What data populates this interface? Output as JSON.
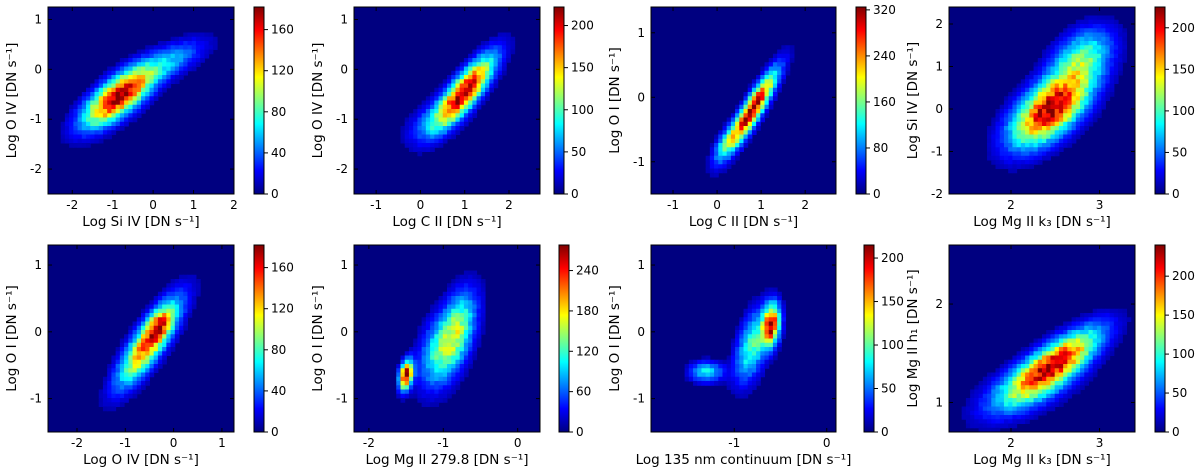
{
  "figure": {
    "colormap": "jet",
    "colors": {
      "low": "#00007f",
      "background": "#00007f",
      "high": "#7f0000"
    }
  },
  "chart_data": [
    {
      "type": "heatmap",
      "panel": "top-1",
      "xlabel": "Log Si IV [DN s⁻¹]",
      "ylabel": "Log O IV [DN s⁻¹]",
      "xlim": [
        -2.6,
        2.0
      ],
      "ylim": [
        -2.5,
        1.25
      ],
      "xticks": [
        -2,
        -1,
        0,
        1,
        2
      ],
      "yticks": [
        -2,
        -1,
        0,
        1
      ],
      "colorbar": {
        "min": 0,
        "max": 182,
        "ticks": [
          0,
          40,
          80,
          120,
          160
        ]
      },
      "peak": {
        "x": -0.85,
        "y": -0.55,
        "count": 182
      },
      "distribution": [
        {
          "x": -0.85,
          "y": -0.55,
          "sx": 0.55,
          "sy": 0.38,
          "rho": 0.72,
          "w": 1.0
        },
        {
          "x": 0.4,
          "y": 0.15,
          "sx": 0.6,
          "sy": 0.3,
          "rho": 0.7,
          "w": 0.22
        }
      ]
    },
    {
      "type": "heatmap",
      "panel": "top-2",
      "xlabel": "Log C II [DN s⁻¹]",
      "ylabel": "Log O IV [DN s⁻¹]",
      "xlim": [
        -1.5,
        2.7
      ],
      "ylim": [
        -2.5,
        1.25
      ],
      "xticks": [
        -1,
        0,
        1,
        2
      ],
      "yticks": [
        -2,
        -1,
        0,
        1
      ],
      "colorbar": {
        "min": 0,
        "max": 222,
        "ticks": [
          0,
          50,
          100,
          150,
          200
        ]
      },
      "peak": {
        "x": 1.0,
        "y": -0.45,
        "count": 222
      },
      "distribution": [
        {
          "x": 1.0,
          "y": -0.45,
          "sx": 0.42,
          "sy": 0.45,
          "rho": 0.82,
          "w": 1.0
        },
        {
          "x": 0.3,
          "y": -1.0,
          "sx": 0.4,
          "sy": 0.3,
          "rho": 0.6,
          "w": 0.18
        }
      ]
    },
    {
      "type": "heatmap",
      "panel": "top-3",
      "xlabel": "Log C II [DN s⁻¹]",
      "ylabel": "Log O I [DN s⁻¹]",
      "xlim": [
        -1.5,
        2.7
      ],
      "ylim": [
        -1.5,
        1.4
      ],
      "xticks": [
        -1,
        0,
        1,
        2
      ],
      "yticks": [
        -1,
        0,
        1
      ],
      "colorbar": {
        "min": 0,
        "max": 325,
        "ticks": [
          0,
          80,
          160,
          240,
          320
        ]
      },
      "peak": {
        "x": 0.95,
        "y": -0.05,
        "count": 325
      },
      "distribution": [
        {
          "x": 0.8,
          "y": -0.2,
          "sx": 0.35,
          "sy": 0.38,
          "rho": 0.9,
          "w": 1.0
        },
        {
          "x": 0.2,
          "y": -0.7,
          "sx": 0.2,
          "sy": 0.2,
          "rho": 0.7,
          "w": 0.25
        }
      ]
    },
    {
      "type": "heatmap",
      "panel": "top-4",
      "xlabel": "Log Mg II k₃ [DN s⁻¹]",
      "ylabel": "Log Si IV [DN s⁻¹]",
      "xlim": [
        1.3,
        3.4
      ],
      "ylim": [
        -2.0,
        2.4
      ],
      "xticks": [
        2,
        3
      ],
      "yticks": [
        -2,
        -1,
        0,
        1,
        2
      ],
      "colorbar": {
        "min": 0,
        "max": 225,
        "ticks": [
          0,
          50,
          100,
          150,
          200
        ]
      },
      "peak": {
        "x": 2.45,
        "y": 0.05,
        "count": 225
      },
      "distribution": [
        {
          "x": 2.45,
          "y": 0.0,
          "sx": 0.28,
          "sy": 0.55,
          "rho": 0.6,
          "w": 1.0
        },
        {
          "x": 2.8,
          "y": 1.2,
          "sx": 0.22,
          "sy": 0.45,
          "rho": 0.4,
          "w": 0.4
        }
      ]
    },
    {
      "type": "heatmap",
      "panel": "bottom-1",
      "xlabel": "Log O IV [DN s⁻¹]",
      "ylabel": "Log O I [DN s⁻¹]",
      "xlim": [
        -2.6,
        1.25
      ],
      "ylim": [
        -1.5,
        1.3
      ],
      "xticks": [
        -2,
        -1,
        0,
        1
      ],
      "yticks": [
        -1,
        0,
        1
      ],
      "colorbar": {
        "min": 0,
        "max": 182,
        "ticks": [
          0,
          40,
          80,
          120,
          160
        ]
      },
      "peak": {
        "x": -0.3,
        "y": 0.1,
        "count": 182
      },
      "distribution": [
        {
          "x": -0.5,
          "y": -0.15,
          "sx": 0.4,
          "sy": 0.4,
          "rho": 0.82,
          "w": 1.0
        },
        {
          "x": -0.3,
          "y": 0.1,
          "sx": 0.15,
          "sy": 0.15,
          "rho": 0.3,
          "w": 0.4
        }
      ]
    },
    {
      "type": "heatmap",
      "panel": "bottom-2",
      "xlabel": "Log Mg II 279.8 [DN s⁻¹]",
      "ylabel": "Log O I [DN s⁻¹]",
      "xlim": [
        -2.2,
        0.3
      ],
      "ylim": [
        -1.5,
        1.3
      ],
      "xticks": [
        -2,
        -1,
        0
      ],
      "yticks": [
        -1,
        0,
        1
      ],
      "colorbar": {
        "min": 0,
        "max": 278,
        "ticks": [
          0,
          60,
          120,
          180,
          240
        ]
      },
      "peak": {
        "x": -1.5,
        "y": -0.65,
        "count": 278
      },
      "distribution": [
        {
          "x": -1.5,
          "y": -0.65,
          "sx": 0.06,
          "sy": 0.14,
          "rho": 0.3,
          "w": 1.0
        },
        {
          "x": -0.85,
          "y": -0.05,
          "sx": 0.18,
          "sy": 0.4,
          "rho": 0.5,
          "w": 0.55
        },
        {
          "x": -1.15,
          "y": -0.35,
          "sx": 0.15,
          "sy": 0.35,
          "rho": 0.3,
          "w": 0.2
        }
      ]
    },
    {
      "type": "heatmap",
      "panel": "bottom-3",
      "xlabel": "Log 135 nm continuum [DN s⁻¹]",
      "ylabel": "Log O I [DN s⁻¹]",
      "xlim": [
        -1.9,
        0.1
      ],
      "ylim": [
        -1.5,
        1.3
      ],
      "xticks": [
        -1,
        0
      ],
      "yticks": [
        -1,
        0,
        1
      ],
      "colorbar": {
        "min": 0,
        "max": 215,
        "ticks": [
          0,
          50,
          100,
          150,
          200
        ]
      },
      "peak": {
        "x": -0.6,
        "y": 0.15,
        "count": 215
      },
      "distribution": [
        {
          "x": -0.6,
          "y": 0.1,
          "sx": 0.06,
          "sy": 0.2,
          "rho": 0.2,
          "w": 1.0
        },
        {
          "x": -0.8,
          "y": -0.2,
          "sx": 0.12,
          "sy": 0.35,
          "rho": 0.5,
          "w": 0.45
        },
        {
          "x": -1.3,
          "y": -0.6,
          "sx": 0.12,
          "sy": 0.1,
          "rho": 0.0,
          "w": 0.35
        }
      ]
    },
    {
      "type": "heatmap",
      "panel": "bottom-4",
      "xlabel": "Log Mg II k₃ [DN s⁻¹]",
      "ylabel": "Log Mg II h₁ [DN s⁻¹]",
      "xlim": [
        1.3,
        3.4
      ],
      "ylim": [
        0.7,
        2.6
      ],
      "xticks": [
        2,
        3
      ],
      "yticks": [
        1,
        2
      ],
      "colorbar": {
        "min": 0,
        "max": 240,
        "ticks": [
          0,
          50,
          100,
          150,
          200
        ]
      },
      "peak": {
        "x": 2.5,
        "y": 1.38,
        "count": 240
      },
      "distribution": [
        {
          "x": 2.5,
          "y": 1.4,
          "sx": 0.32,
          "sy": 0.22,
          "rho": 0.78,
          "w": 1.0
        },
        {
          "x": 2.2,
          "y": 1.15,
          "sx": 0.35,
          "sy": 0.2,
          "rho": 0.6,
          "w": 0.3
        }
      ]
    }
  ]
}
